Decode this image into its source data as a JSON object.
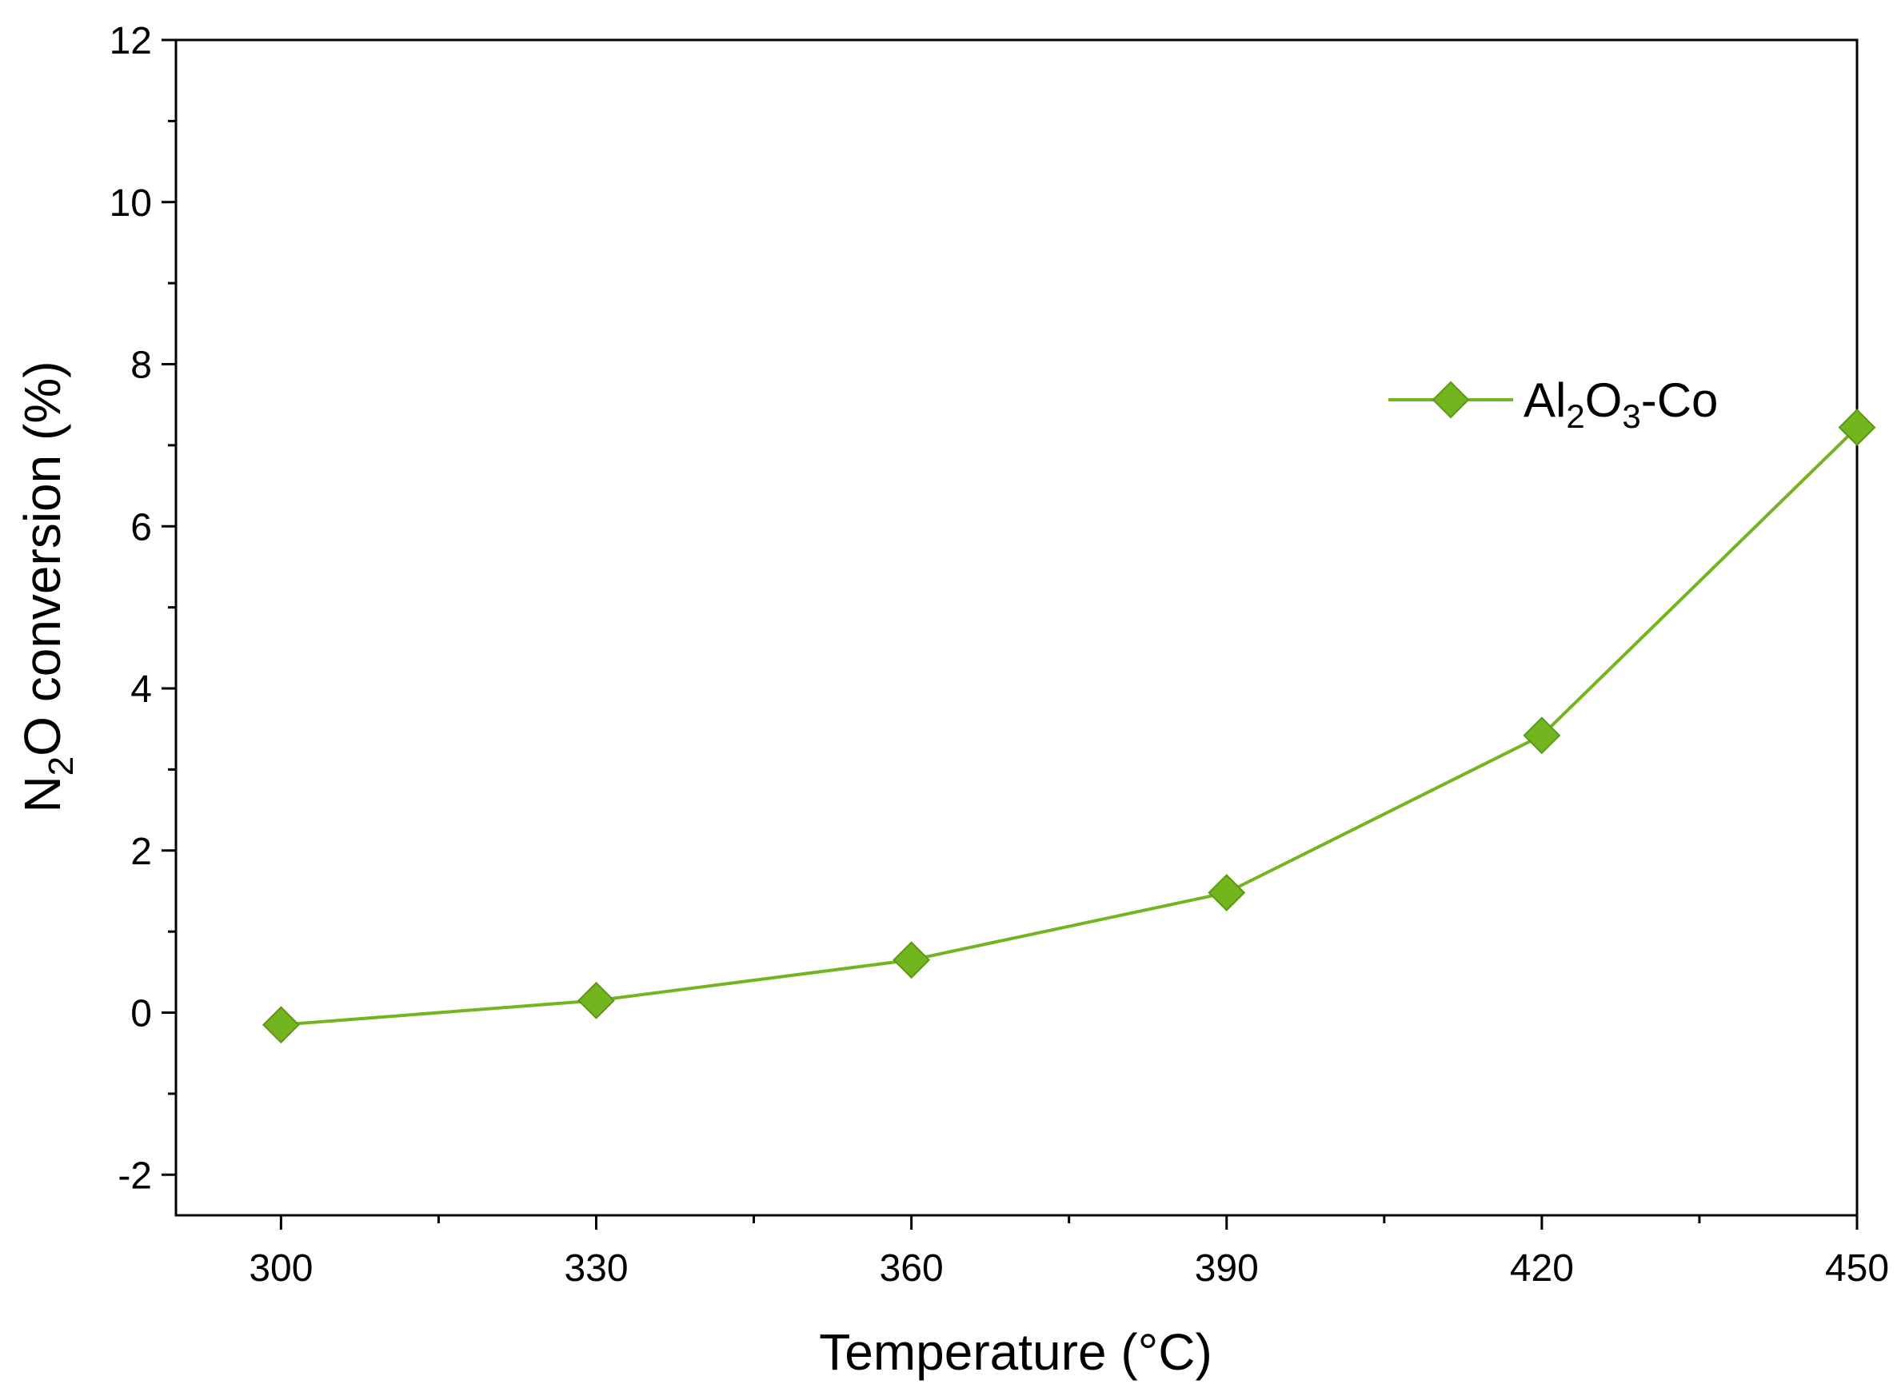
{
  "chart_data": {
    "type": "line",
    "title": "",
    "xlabel": "Temperature (°C)",
    "ylabel_parts": {
      "pre": "N",
      "sub": "2",
      "post": "O conversion (%)"
    },
    "x": [
      300,
      330,
      360,
      390,
      420,
      450
    ],
    "xlim": [
      290,
      450
    ],
    "ylim": [
      -2.5,
      12
    ],
    "xticks": [
      300,
      330,
      360,
      390,
      420,
      450
    ],
    "xtick_labels": [
      "300",
      "330",
      "360",
      "390",
      "420",
      "450"
    ],
    "yticks": [
      -2,
      0,
      2,
      4,
      6,
      8,
      10,
      12
    ],
    "ytick_labels": [
      "-2",
      "0",
      "2",
      "4",
      "6",
      "8",
      "10",
      "12"
    ],
    "series": [
      {
        "name_parts": {
          "a": "Al",
          "sub1": "2",
          "b": "O",
          "sub2": "3",
          "c": "-Co"
        },
        "values": [
          -0.15,
          0.15,
          0.65,
          1.48,
          3.42,
          7.22
        ],
        "color": "#72b51e",
        "marker": "diamond"
      }
    ],
    "legend_position": "top-right",
    "grid": false
  }
}
